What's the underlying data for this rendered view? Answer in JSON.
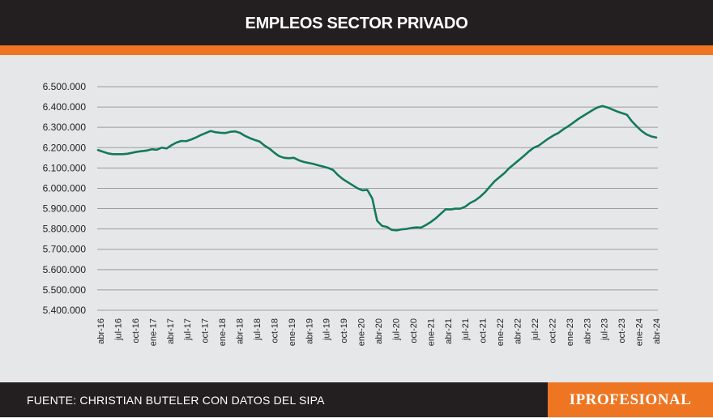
{
  "header": {
    "title": "EMPLEOS SECTOR PRIVADO"
  },
  "footer": {
    "source": "FUENTE: CHRISTIAN BUTELER CON DATOS DEL SIPA"
  },
  "logo": {
    "text": "IPROFESIONAL"
  },
  "colors": {
    "line": "#137a5c",
    "header": "#231f20",
    "accent": "#ee7623",
    "grid": "#9d9d9d",
    "background": "#e6e7e8"
  },
  "chart_data": {
    "type": "line",
    "title": "EMPLEOS SECTOR PRIVADO",
    "xlabel": "",
    "ylabel": "",
    "ylim": [
      5400000,
      6500000
    ],
    "yticks": [
      5400000,
      5500000,
      5600000,
      5700000,
      5800000,
      5900000,
      6000000,
      6100000,
      6200000,
      6300000,
      6400000,
      6500000
    ],
    "ytick_labels": [
      "5.400.000",
      "5.500.000",
      "5.600.000",
      "5.700.000",
      "5.800.000",
      "5.900.000",
      "6.000.000",
      "6.100.000",
      "6.200.000",
      "6.300.000",
      "6.400.000",
      "6.500.000"
    ],
    "xtick_labels": [
      "abr-16",
      "jul-16",
      "oct-16",
      "ene-17",
      "abr-17",
      "jul-17",
      "oct-17",
      "ene-18",
      "abr-18",
      "jul-18",
      "oct-18",
      "ene-19",
      "abr-19",
      "jul-19",
      "oct-19",
      "ene-20",
      "abr-20",
      "jul-20",
      "oct-20",
      "ene-21",
      "abr-21",
      "jul-21",
      "oct-21",
      "ene-22",
      "abr-22",
      "jul-22",
      "oct-22",
      "ene-23",
      "abr-23",
      "jul-23",
      "oct-23",
      "ene-24",
      "abr-24"
    ],
    "grid": true,
    "series": [
      {
        "values": [
          6188000,
          6180000,
          6172000,
          6168000,
          6168000,
          6168000,
          6170000,
          6175000,
          6180000,
          6183000,
          6186000,
          6192000,
          6190000,
          6200000,
          6196000,
          6212000,
          6225000,
          6233000,
          6232000,
          6240000,
          6250000,
          6262000,
          6272000,
          6282000,
          6276000,
          6273000,
          6272000,
          6278000,
          6280000,
          6273000,
          6258000,
          6247000,
          6238000,
          6230000,
          6210000,
          6195000,
          6175000,
          6158000,
          6150000,
          6148000,
          6150000,
          6138000,
          6130000,
          6125000,
          6120000,
          6113000,
          6107000,
          6100000,
          6090000,
          6065000,
          6045000,
          6030000,
          6015000,
          6000000,
          5990000,
          5992000,
          5950000,
          5840000,
          5815000,
          5810000,
          5795000,
          5793000,
          5798000,
          5800000,
          5805000,
          5808000,
          5807000,
          5820000,
          5835000,
          5853000,
          5875000,
          5897000,
          5896000,
          5900000,
          5900000,
          5910000,
          5928000,
          5940000,
          5958000,
          5980000,
          6008000,
          6035000,
          6055000,
          6075000,
          6100000,
          6120000,
          6140000,
          6160000,
          6182000,
          6200000,
          6210000,
          6228000,
          6245000,
          6260000,
          6272000,
          6290000,
          6305000,
          6322000,
          6340000,
          6355000,
          6370000,
          6385000,
          6398000,
          6405000,
          6398000,
          6388000,
          6378000,
          6370000,
          6362000,
          6330000,
          6305000,
          6282000,
          6265000,
          6255000,
          6250000
        ]
      }
    ]
  }
}
